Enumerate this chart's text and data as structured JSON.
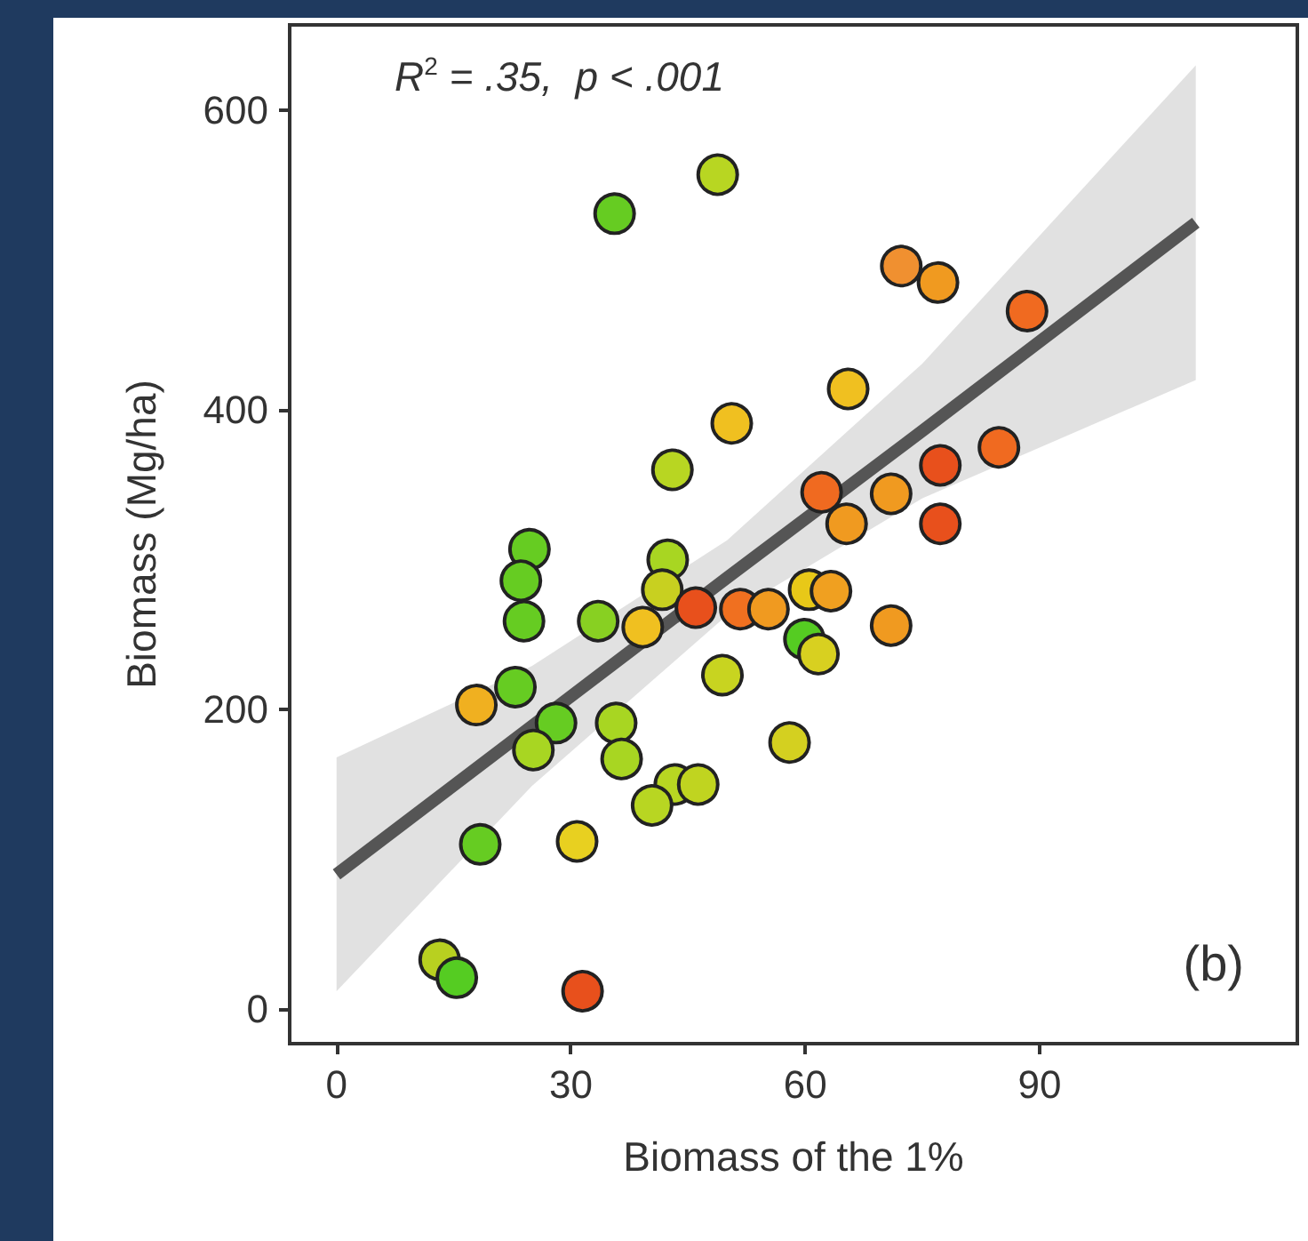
{
  "chart_data": {
    "type": "scatter",
    "xlabel": "Biomass of the 1%",
    "ylabel": "Biomass (Mg/ha)",
    "annotations": [
      "R$^{2}$ = .35,  p < .001",
      "(b)"
    ],
    "xlim": [
      -6,
      123
    ],
    "ylim": [
      -23,
      657
    ],
    "xticks": [
      0,
      30,
      60,
      90
    ],
    "yticks": [
      0,
      200,
      400,
      600
    ],
    "grid": false,
    "series": [
      {
        "marker": "circle",
        "x": [
          35.6,
          48.8,
          50.6,
          43,
          24.7,
          72.3,
          77,
          88.4,
          65.5,
          84.8,
          77.3,
          62.1,
          71,
          65.3,
          77.3,
          71,
          59.9,
          61.7,
          60.5,
          63.3,
          58,
          23.6,
          24,
          42.4,
          41.7,
          33.5,
          39.2,
          46,
          51.7,
          55.3,
          49.4,
          17.9,
          22.9,
          28.1,
          25.2,
          35.8,
          36.5,
          43.3,
          46.3,
          40.4,
          18.4,
          30.8,
          13.2,
          15.4,
          31.5
        ],
        "values": [
          531,
          557,
          391,
          360,
          307,
          496,
          485,
          466,
          414,
          375,
          363,
          345,
          344,
          324,
          324,
          256,
          247,
          237,
          280,
          279,
          178,
          286,
          259,
          300,
          280,
          259,
          255,
          268,
          267,
          267,
          223,
          203,
          215,
          191,
          173,
          191,
          167,
          150,
          150,
          136,
          110,
          112,
          33,
          21,
          12
        ],
        "colors": [
          "#66cc22",
          "#b8d622",
          "#f0c020",
          "#b8d622",
          "#66cc22",
          "#f09030",
          "#f09a20",
          "#f06a20",
          "#f0c020",
          "#f06a20",
          "#e8501c",
          "#f06a20",
          "#f09a20",
          "#f09a20",
          "#e8501c",
          "#f09a20",
          "#55cc22",
          "#d8d020",
          "#e8c818",
          "#f0a020",
          "#d4d020",
          "#66cc22",
          "#66cc22",
          "#a8d622",
          "#c8d020",
          "#88d022",
          "#f0c020",
          "#e8501c",
          "#f07020",
          "#f09a20",
          "#c8d420",
          "#f0b020",
          "#66cc22",
          "#66cc22",
          "#a8d622",
          "#a8d622",
          "#a8d622",
          "#b8d622",
          "#c0d420",
          "#b8d622",
          "#66cc22",
          "#e8d020",
          "#b8d020",
          "#55cc22",
          "#e8501c"
        ]
      },
      {
        "type": "line",
        "marker": "none",
        "line_style": "solid",
        "color": "#555555",
        "x": [
          0,
          25,
          50,
          75,
          110
        ],
        "values": [
          90,
          189,
          288,
          386,
          525
        ],
        "lower": [
          12,
          149,
          263,
          341,
          420
        ],
        "upper": [
          168,
          229,
          313,
          431,
          630
        ]
      }
    ]
  }
}
